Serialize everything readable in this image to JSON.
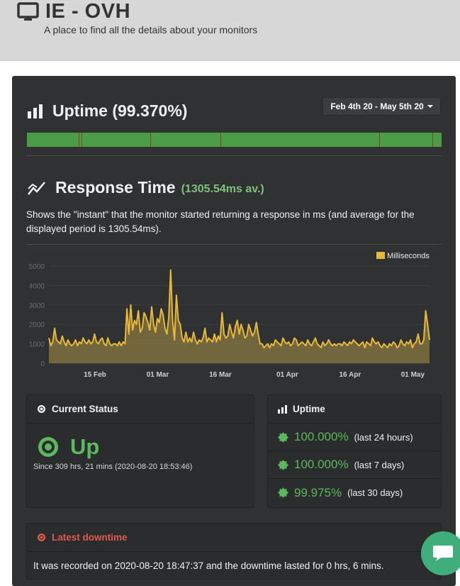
{
  "header": {
    "title": "IE - OVH",
    "subtitle": "A place to find all the details about your monitors",
    "icon": "monitor-icon"
  },
  "uptime_section": {
    "title": "Uptime (99.370%)",
    "icon": "bar-chart-icon",
    "date_range": "Feb 4th 20 - May 5th 20",
    "bar_color": "#4a9d45",
    "downtime_color": "#8a3b2b"
  },
  "response_section": {
    "title": "Response Time",
    "average": "(1305.54ms av.)",
    "icon": "line-chart-icon",
    "description": "Shows the \"instant\" that the monitor started returning a response in ms (and average for the displayed period is 1305.54ms)."
  },
  "chart_data": {
    "type": "area",
    "legend": "Milliseconds",
    "legend_position": "top-right",
    "ylim": [
      0,
      5000
    ],
    "yticks": [
      "0",
      "1000",
      "2000",
      "3000",
      "4000",
      "5000"
    ],
    "xticks": [
      "15 Feb",
      "01 Mar",
      "16 Mar",
      "01 Apr",
      "16 Apr",
      "01 May"
    ],
    "xtick_days": [
      11,
      26,
      41,
      57,
      72,
      87
    ],
    "x_range_days": [
      0,
      91
    ],
    "series_color": "#e8b83a",
    "values": [
      1300,
      900,
      1100,
      1800,
      1200,
      1100,
      1000,
      1400,
      1100,
      900,
      1200,
      1000,
      900,
      1000,
      1200,
      900,
      1100,
      1000,
      1300,
      1100,
      1000,
      1200,
      1000,
      1100,
      1500,
      1100,
      1000,
      1200,
      1300,
      1000,
      900,
      1300,
      1000,
      900,
      1000,
      1000,
      900,
      1100,
      900,
      1100,
      1000,
      2800,
      1500,
      3000,
      1700,
      2200,
      2000,
      2700,
      1600,
      1800,
      2600,
      2400,
      2100,
      1700,
      2900,
      2000,
      1600,
      2300,
      2100,
      2800,
      2500,
      1800,
      1500,
      2400,
      4800,
      2200,
      1200,
      3500,
      2200,
      2000,
      1300,
      1100,
      1600,
      1100,
      1300,
      1100,
      1600,
      1200,
      1000,
      1200,
      1100,
      1300,
      1800,
      1100,
      1300,
      1200,
      1100,
      1500,
      1100,
      1400,
      1200,
      2600,
      1500,
      1300,
      1400,
      2000,
      1600,
      1300,
      1900,
      2200,
      1500,
      2000,
      1700,
      1300,
      1400,
      2000,
      1700,
      1400,
      1600,
      2100,
      1500,
      1000,
      1000,
      800,
      900,
      1000,
      800,
      1000,
      900,
      1200,
      1100,
      1000,
      900,
      1300,
      1100,
      1000,
      1100,
      900,
      1000,
      1300,
      1200,
      900,
      1000,
      1100,
      1000,
      900,
      1200,
      1000,
      900,
      1100,
      1300,
      1000,
      900,
      800,
      1100,
      900,
      1000,
      1200,
      1000,
      900,
      1000,
      900,
      1000,
      1000,
      900,
      1100,
      1000,
      900,
      1100,
      1000,
      1200,
      1100,
      1000,
      900,
      1000,
      1100,
      800,
      1100,
      1000,
      900,
      1300,
      1100,
      1000,
      1100,
      900,
      800,
      1000,
      900,
      800,
      1000,
      900,
      1100,
      1000,
      800,
      900,
      1200,
      1000,
      900,
      1100,
      1000,
      1200,
      800,
      1000,
      1100,
      1500,
      1000,
      1000,
      1200,
      2700,
      2000,
      1200
    ]
  },
  "current_status": {
    "title": "Current Status",
    "icon": "dot-circle-icon",
    "status": "Up",
    "since": "Since 309 hrs, 21 mins (2020-08-20 18:53:46)",
    "status_color": "#5cb85c"
  },
  "uptime_box": {
    "title": "Uptime",
    "icon": "bar-chart-icon",
    "rows": [
      {
        "pct": "100.000%",
        "period": "(last 24 hours)"
      },
      {
        "pct": "100.000%",
        "period": "(last 7 days)"
      },
      {
        "pct": "99.975%",
        "period": "(last 30 days)"
      }
    ]
  },
  "latest_downtime": {
    "title": "Latest downtime",
    "icon": "dot-circle-icon",
    "text": "It was recorded on 2020-08-20 18:47:37 and the downtime lasted for 0 hrs, 6 mins.",
    "title_color": "#e05a4f"
  },
  "chat": {
    "icon": "chat-bubble-icon",
    "color": "#3fae7a"
  }
}
